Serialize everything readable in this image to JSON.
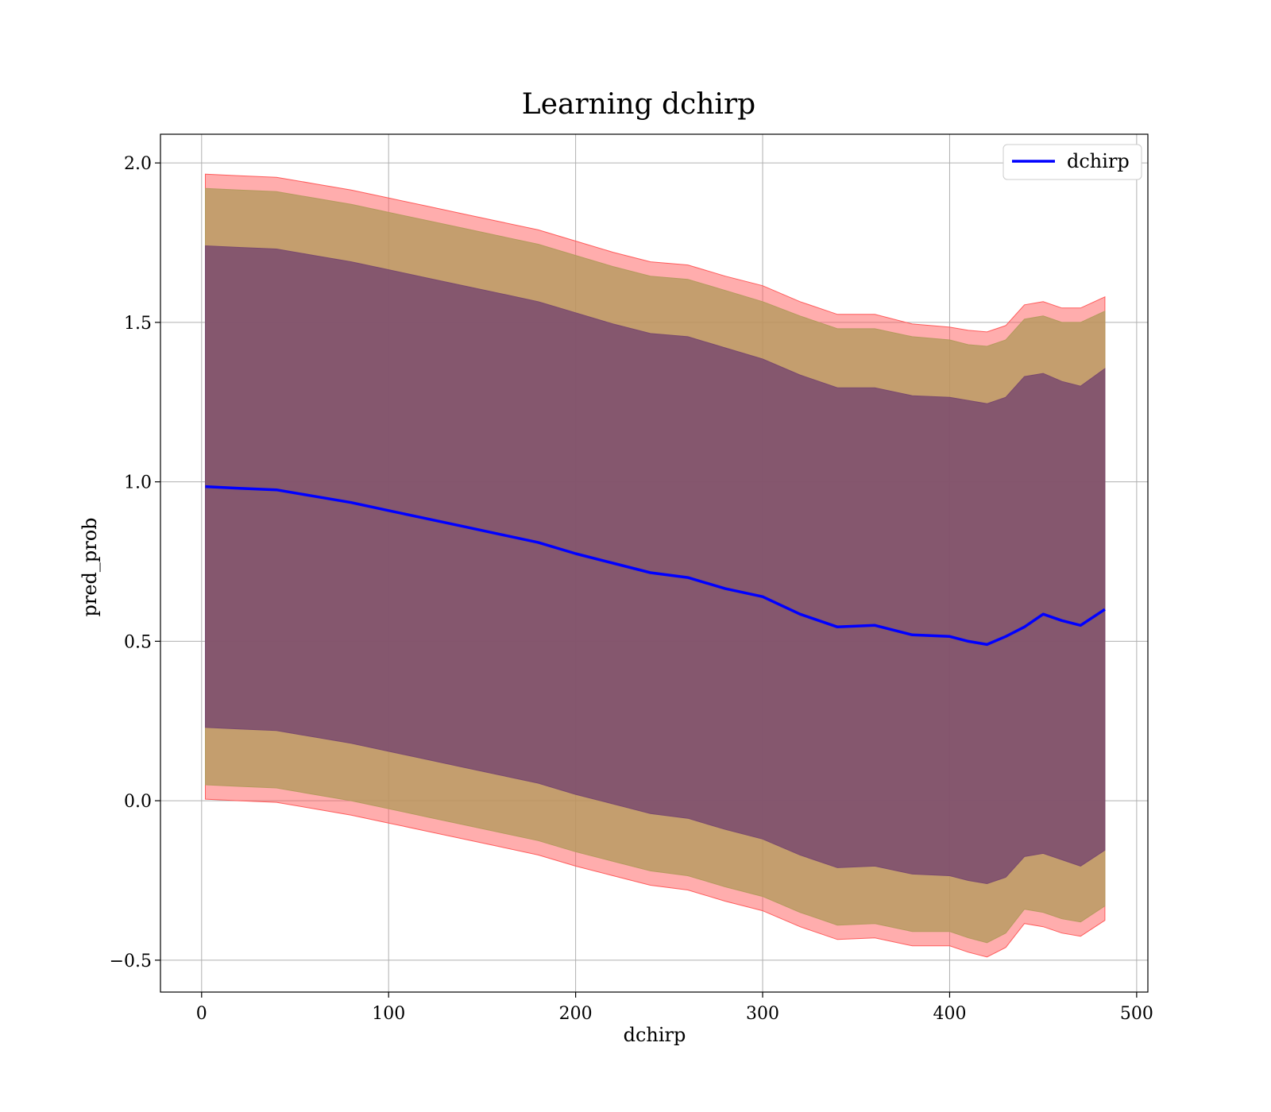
{
  "chart_data": {
    "type": "area",
    "title": "Learning dchirp",
    "xlabel": "dchirp",
    "ylabel": "pred_prob",
    "xlim": [
      -22,
      506
    ],
    "ylim": [
      -0.6,
      2.09
    ],
    "xticks": [
      0,
      100,
      200,
      300,
      400,
      500
    ],
    "xtick_labels": [
      "0",
      "100",
      "200",
      "300",
      "400",
      "500"
    ],
    "yticks": [
      -0.5,
      0.0,
      0.5,
      1.0,
      1.5,
      2.0
    ],
    "ytick_labels": [
      "−0.5",
      "0.0",
      "0.5",
      "1.0",
      "1.5",
      "2.0"
    ],
    "grid": true,
    "legend": {
      "placement": "top-right",
      "entries": [
        "dchirp"
      ]
    },
    "colors": {
      "line": "#0000ff",
      "band_outer": "#ff5c5c",
      "band_middle": "#b59a5e",
      "band_inner": "#7a4a6e"
    },
    "x": [
      2,
      20,
      40,
      60,
      80,
      100,
      120,
      140,
      160,
      180,
      200,
      220,
      240,
      260,
      280,
      300,
      320,
      340,
      360,
      380,
      400,
      410,
      420,
      430,
      440,
      450,
      460,
      470,
      483
    ],
    "series": [
      {
        "name": "dchirp",
        "values": [
          0.985,
          0.98,
          0.975,
          0.955,
          0.935,
          0.91,
          0.885,
          0.86,
          0.835,
          0.81,
          0.775,
          0.745,
          0.715,
          0.7,
          0.665,
          0.64,
          0.585,
          0.545,
          0.55,
          0.52,
          0.515,
          0.5,
          0.49,
          0.515,
          0.545,
          0.585,
          0.565,
          0.55,
          0.6
        ]
      }
    ],
    "bands": [
      {
        "upper": [
          1.965,
          1.96,
          1.955,
          1.935,
          1.915,
          1.89,
          1.865,
          1.84,
          1.815,
          1.79,
          1.755,
          1.72,
          1.69,
          1.68,
          1.645,
          1.615,
          1.565,
          1.525,
          1.525,
          1.495,
          1.485,
          1.475,
          1.47,
          1.49,
          1.555,
          1.565,
          1.545,
          1.545,
          1.58
        ],
        "lower": [
          0.005,
          0.0,
          -0.005,
          -0.025,
          -0.045,
          -0.07,
          -0.095,
          -0.12,
          -0.145,
          -0.17,
          -0.205,
          -0.235,
          -0.265,
          -0.28,
          -0.315,
          -0.345,
          -0.395,
          -0.435,
          -0.43,
          -0.455,
          -0.455,
          -0.475,
          -0.49,
          -0.46,
          -0.385,
          -0.395,
          -0.415,
          -0.425,
          -0.375
        ]
      },
      {
        "upper": [
          1.92,
          1.915,
          1.91,
          1.89,
          1.87,
          1.845,
          1.82,
          1.795,
          1.77,
          1.745,
          1.71,
          1.675,
          1.645,
          1.635,
          1.6,
          1.565,
          1.52,
          1.48,
          1.48,
          1.455,
          1.445,
          1.43,
          1.425,
          1.445,
          1.51,
          1.52,
          1.5,
          1.5,
          1.535
        ],
        "lower": [
          0.05,
          0.045,
          0.04,
          0.02,
          0.0,
          -0.025,
          -0.05,
          -0.075,
          -0.1,
          -0.125,
          -0.16,
          -0.19,
          -0.22,
          -0.235,
          -0.27,
          -0.3,
          -0.35,
          -0.39,
          -0.385,
          -0.41,
          -0.41,
          -0.43,
          -0.445,
          -0.415,
          -0.34,
          -0.35,
          -0.37,
          -0.38,
          -0.33
        ]
      },
      {
        "upper": [
          1.74,
          1.735,
          1.73,
          1.71,
          1.69,
          1.665,
          1.64,
          1.615,
          1.59,
          1.565,
          1.53,
          1.495,
          1.465,
          1.455,
          1.42,
          1.385,
          1.335,
          1.295,
          1.295,
          1.27,
          1.265,
          1.255,
          1.245,
          1.265,
          1.33,
          1.34,
          1.315,
          1.3,
          1.355
        ],
        "lower": [
          0.23,
          0.225,
          0.22,
          0.2,
          0.18,
          0.155,
          0.13,
          0.105,
          0.08,
          0.055,
          0.02,
          -0.01,
          -0.04,
          -0.055,
          -0.09,
          -0.12,
          -0.17,
          -0.21,
          -0.205,
          -0.23,
          -0.235,
          -0.25,
          -0.26,
          -0.24,
          -0.175,
          -0.165,
          -0.185,
          -0.205,
          -0.155
        ]
      }
    ]
  }
}
